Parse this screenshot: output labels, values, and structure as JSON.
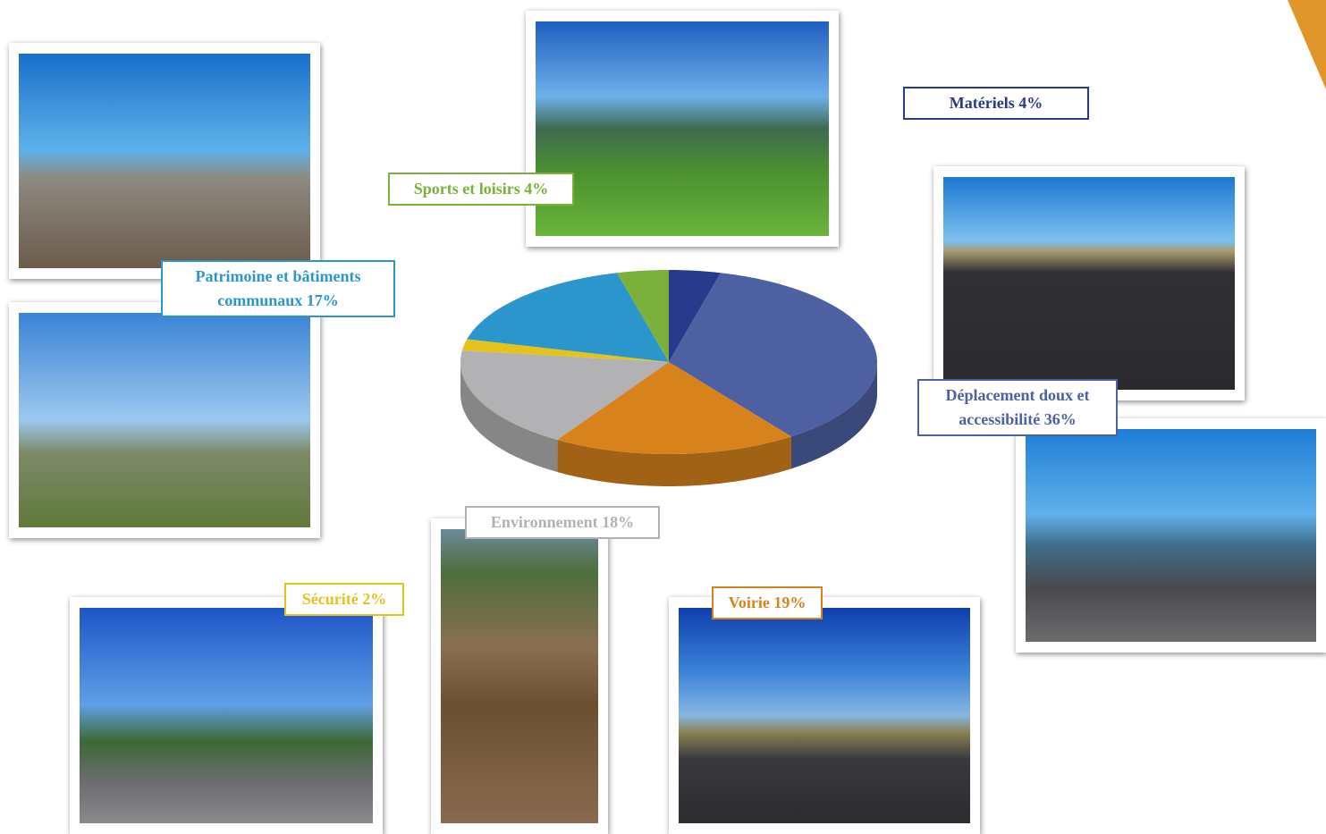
{
  "chart_data": {
    "type": "pie3d",
    "values": [
      4,
      36,
      19,
      18,
      2,
      17,
      4
    ],
    "value_labels": [
      "Matériels 4%",
      "Déplacement doux et accessibilité 36%",
      "Voirie 19%",
      "Environnement 18%",
      "Sécurité 2%",
      "Patrimoine et bâtiments communaux 17%",
      "Sports et loisirs 4%"
    ],
    "colors": [
      "#283a8c",
      "#4d60a2",
      "#d8821c",
      "#b2b2b4",
      "#e6c21c",
      "#2a96cc",
      "#7bb13a"
    ]
  }
}
